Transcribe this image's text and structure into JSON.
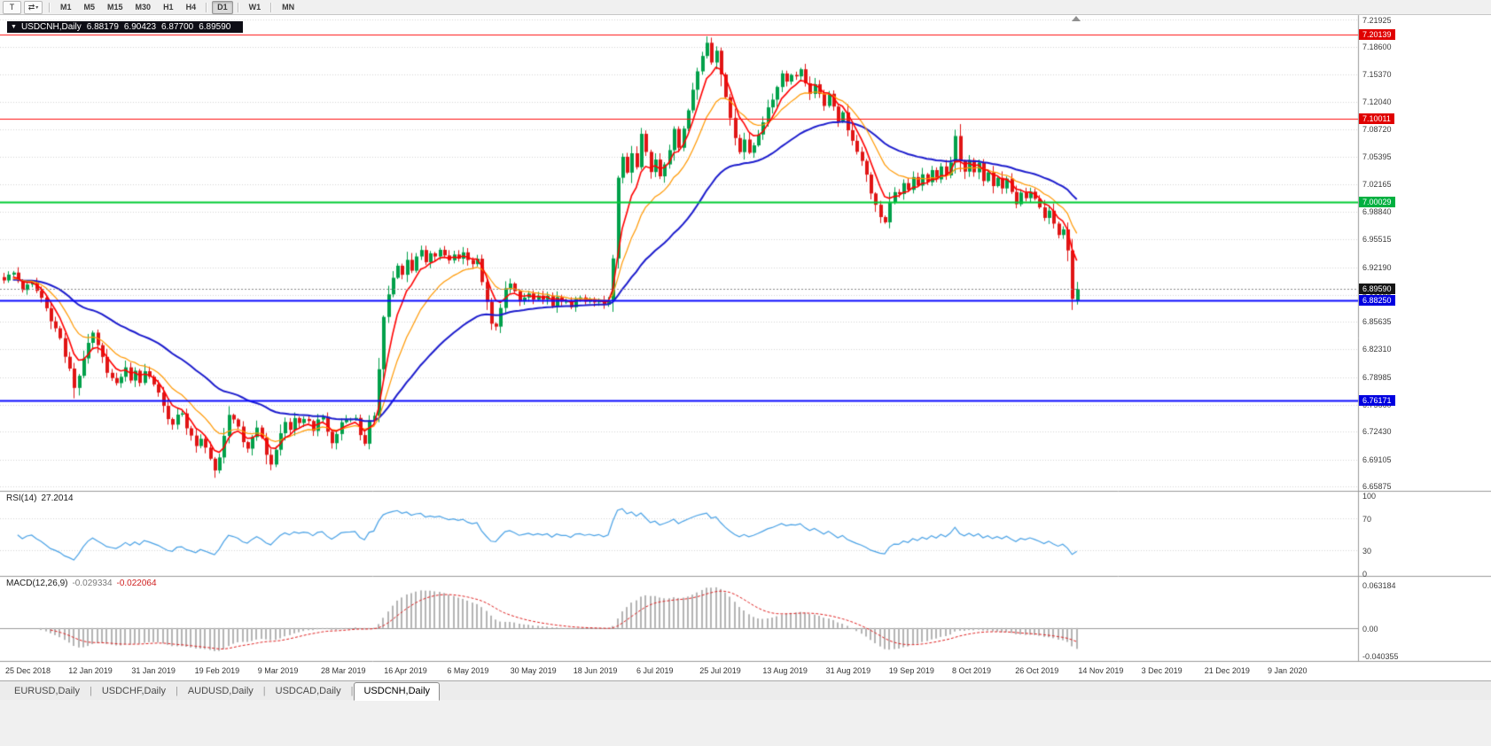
{
  "toolbar": {
    "tool_buttons": [
      {
        "name": "chart-tool-button",
        "glyph": "T"
      },
      {
        "name": "scroll-arrows-button",
        "glyph": "⇄",
        "caret": "▾"
      }
    ],
    "timeframe_groups": [
      [
        "M1",
        "M5",
        "M15",
        "M30",
        "H1",
        "H4"
      ],
      [
        "D1"
      ],
      [
        "W1"
      ],
      [
        "MN"
      ]
    ],
    "active_timeframe": "D1"
  },
  "chart_header": {
    "collapse_icon": "▼",
    "symbol": "USDCNH,Daily",
    "open": "6.88179",
    "high": "6.90423",
    "low": "6.87700",
    "close": "6.89590"
  },
  "price_axis": {
    "ticks": [
      "7.21925",
      "7.18600",
      "7.15370",
      "7.12040",
      "7.08720",
      "7.05395",
      "7.02165",
      "6.98840",
      "6.95515",
      "6.92190",
      "6.88865",
      "6.85635",
      "6.82310",
      "6.78985",
      "6.75660",
      "6.72430",
      "6.69105",
      "6.65875"
    ],
    "badges": [
      {
        "text": "7.20139",
        "price": 7.20139,
        "color": "#e00000"
      },
      {
        "text": "7.10011",
        "price": 7.10011,
        "color": "#e00000"
      },
      {
        "text": "7.00029",
        "price": 7.00029,
        "color": "#00b040"
      },
      {
        "text": "6.89590",
        "price": 6.8959,
        "color": "#151515"
      },
      {
        "text": "6.88250",
        "price": 6.8825,
        "color": "#0000e0"
      },
      {
        "text": "6.76171",
        "price": 6.76171,
        "color": "#0000e0"
      }
    ]
  },
  "hlines": [
    {
      "price": 7.20139,
      "color": "#ff1010",
      "width": 1.2
    },
    {
      "price": 7.10011,
      "color": "#ff1010",
      "width": 1.2
    },
    {
      "price": 7.00029,
      "color": "#00cc33",
      "width": 2
    },
    {
      "price": 6.8825,
      "color": "#0a0aff",
      "width": 2
    },
    {
      "price": 6.76171,
      "color": "#0a0aff",
      "width": 2
    }
  ],
  "last_price_line": {
    "price": 6.8959,
    "color": "#8a8a8a"
  },
  "rsi_panel": {
    "title": "RSI(14)",
    "value": "27.2014",
    "period": 14,
    "levels": [
      "100",
      "70",
      "30",
      "0"
    ],
    "level_values": [
      100,
      70,
      30,
      0
    ],
    "overbought": 70,
    "oversold": 30,
    "line_color": "#4aa2e6"
  },
  "macd_panel": {
    "title": "MACD(12,26,9)",
    "value_main": "-0.029334",
    "value_signal": "-0.022064",
    "fast": 12,
    "slow": 26,
    "signal": 9,
    "axis_labels": [
      "0.063184",
      "0.00",
      "-0.040355"
    ],
    "axis_values": [
      0.063184,
      0,
      -0.040355
    ],
    "hist_color": "#b4b4b4",
    "signal_color": "#e02020"
  },
  "tabs": {
    "items": [
      "EURUSD,Daily",
      "USDCHF,Daily",
      "AUDUSD,Daily",
      "USDCAD,Daily",
      "USDCNH,Daily"
    ],
    "active": "USDCNH,Daily"
  },
  "chart_data": {
    "type": "candlestick",
    "symbol": "USDCNH",
    "timeframe": "Daily",
    "bars": 230,
    "price_axis_top": 7.21925,
    "price_axis_bottom": 6.65875,
    "up_color": "#00a04a",
    "down_color": "#e01515",
    "x_tick_labels": [
      "25 Dec 2018",
      "12 Jan 2019",
      "31 Jan 2019",
      "19 Feb 2019",
      "9 Mar 2019",
      "28 Mar 2019",
      "16 Apr 2019",
      "6 May 2019",
      "30 May 2019",
      "18 Jun 2019",
      "6 Jul 2019",
      "25 Jul 2019",
      "13 Aug 2019",
      "31 Aug 2019",
      "19 Sep 2019",
      "8 Oct 2019",
      "26 Oct 2019",
      "14 Nov 2019",
      "3 Dec 2019",
      "21 Dec 2019",
      "9 Jan 2020"
    ],
    "last_ohlc": [
      6.88179,
      6.90423,
      6.877,
      6.8959
    ],
    "noise": 0.007,
    "ma_lines": [
      {
        "type": "ema",
        "period": 40,
        "color": "#1c1ccd",
        "width": 2
      },
      {
        "type": "ema",
        "period": 14,
        "color": "#ff9800",
        "width": 1.2
      },
      {
        "type": "ema",
        "period": 6,
        "color": "#ff0000",
        "width": 1.6
      }
    ],
    "close_path": [
      [
        0,
        6.908
      ],
      [
        2,
        6.915
      ],
      [
        4,
        6.896
      ],
      [
        6,
        6.902
      ],
      [
        8,
        6.885
      ],
      [
        10,
        6.86
      ],
      [
        12,
        6.836
      ],
      [
        13,
        6.815
      ],
      [
        14,
        6.798
      ],
      [
        15,
        6.778
      ],
      [
        16,
        6.792
      ],
      [
        17,
        6.814
      ],
      [
        18,
        6.828
      ],
      [
        19,
        6.842
      ],
      [
        20,
        6.826
      ],
      [
        21,
        6.812
      ],
      [
        22,
        6.798
      ],
      [
        23,
        6.788
      ],
      [
        24,
        6.78
      ],
      [
        25,
        6.792
      ],
      [
        26,
        6.8
      ],
      [
        27,
        6.788
      ],
      [
        28,
        6.795
      ],
      [
        29,
        6.785
      ],
      [
        30,
        6.798
      ],
      [
        31,
        6.79
      ],
      [
        32,
        6.782
      ],
      [
        33,
        6.772
      ],
      [
        34,
        6.755
      ],
      [
        35,
        6.742
      ],
      [
        36,
        6.732
      ],
      [
        37,
        6.742
      ],
      [
        38,
        6.748
      ],
      [
        39,
        6.73
      ],
      [
        40,
        6.718
      ],
      [
        41,
        6.705
      ],
      [
        42,
        6.715
      ],
      [
        43,
        6.708
      ],
      [
        44,
        6.692
      ],
      [
        45,
        6.676
      ],
      [
        46,
        6.692
      ],
      [
        47,
        6.722
      ],
      [
        48,
        6.745
      ],
      [
        49,
        6.736
      ],
      [
        50,
        6.728
      ],
      [
        51,
        6.712
      ],
      [
        52,
        6.705
      ],
      [
        53,
        6.718
      ],
      [
        54,
        6.732
      ],
      [
        55,
        6.715
      ],
      [
        56,
        6.698
      ],
      [
        57,
        6.686
      ],
      [
        58,
        6.702
      ],
      [
        59,
        6.722
      ],
      [
        60,
        6.736
      ],
      [
        61,
        6.728
      ],
      [
        62,
        6.738
      ],
      [
        63,
        6.732
      ],
      [
        64,
        6.742
      ],
      [
        65,
        6.736
      ],
      [
        66,
        6.728
      ],
      [
        67,
        6.736
      ],
      [
        68,
        6.742
      ],
      [
        69,
        6.725
      ],
      [
        70,
        6.71
      ],
      [
        71,
        6.722
      ],
      [
        72,
        6.736
      ],
      [
        73,
        6.742
      ],
      [
        74,
        6.738
      ],
      [
        75,
        6.742
      ],
      [
        76,
        6.722
      ],
      [
        77,
        6.708
      ],
      [
        78,
        6.735
      ],
      [
        79,
        6.745
      ],
      [
        80,
        6.802
      ],
      [
        81,
        6.862
      ],
      [
        82,
        6.89
      ],
      [
        83,
        6.908
      ],
      [
        84,
        6.922
      ],
      [
        85,
        6.912
      ],
      [
        86,
        6.93
      ],
      [
        87,
        6.92
      ],
      [
        88,
        6.935
      ],
      [
        89,
        6.942
      ],
      [
        90,
        6.93
      ],
      [
        91,
        6.94
      ],
      [
        92,
        6.932
      ],
      [
        93,
        6.942
      ],
      [
        94,
        6.935
      ],
      [
        95,
        6.928
      ],
      [
        96,
        6.938
      ],
      [
        97,
        6.93
      ],
      [
        98,
        6.94
      ],
      [
        99,
        6.932
      ],
      [
        100,
        6.925
      ],
      [
        101,
        6.935
      ],
      [
        102,
        6.905
      ],
      [
        103,
        6.878
      ],
      [
        104,
        6.856
      ],
      [
        105,
        6.848
      ],
      [
        106,
        6.872
      ],
      [
        107,
        6.895
      ],
      [
        108,
        6.905
      ],
      [
        109,
        6.892
      ],
      [
        110,
        6.878
      ],
      [
        111,
        6.885
      ],
      [
        112,
        6.89
      ],
      [
        113,
        6.882
      ],
      [
        114,
        6.887
      ],
      [
        115,
        6.88
      ],
      [
        116,
        6.885
      ],
      [
        117,
        6.878
      ],
      [
        118,
        6.884
      ],
      [
        119,
        6.878
      ],
      [
        120,
        6.882
      ],
      [
        121,
        6.876
      ],
      [
        122,
        6.881
      ],
      [
        123,
        6.885
      ],
      [
        124,
        6.879
      ],
      [
        125,
        6.883
      ],
      [
        126,
        6.878
      ],
      [
        127,
        6.882
      ],
      [
        128,
        6.878
      ],
      [
        129,
        6.883
      ],
      [
        130,
        6.935
      ],
      [
        131,
        7.03
      ],
      [
        132,
        7.052
      ],
      [
        133,
        7.036
      ],
      [
        134,
        7.06
      ],
      [
        135,
        7.045
      ],
      [
        136,
        7.085
      ],
      [
        137,
        7.06
      ],
      [
        138,
        7.036
      ],
      [
        139,
        7.052
      ],
      [
        140,
        7.032
      ],
      [
        141,
        7.048
      ],
      [
        142,
        7.065
      ],
      [
        143,
        7.085
      ],
      [
        144,
        7.068
      ],
      [
        145,
        7.09
      ],
      [
        146,
        7.11
      ],
      [
        147,
        7.135
      ],
      [
        148,
        7.158
      ],
      [
        149,
        7.178
      ],
      [
        150,
        7.192
      ],
      [
        151,
        7.165
      ],
      [
        152,
        7.182
      ],
      [
        153,
        7.155
      ],
      [
        154,
        7.128
      ],
      [
        155,
        7.098
      ],
      [
        156,
        7.078
      ],
      [
        157,
        7.062
      ],
      [
        158,
        7.075
      ],
      [
        159,
        7.062
      ],
      [
        160,
        7.068
      ],
      [
        161,
        7.082
      ],
      [
        162,
        7.098
      ],
      [
        163,
        7.112
      ],
      [
        164,
        7.125
      ],
      [
        165,
        7.138
      ],
      [
        166,
        7.152
      ],
      [
        167,
        7.142
      ],
      [
        168,
        7.155
      ],
      [
        169,
        7.148
      ],
      [
        170,
        7.158
      ],
      [
        171,
        7.145
      ],
      [
        172,
        7.132
      ],
      [
        173,
        7.142
      ],
      [
        174,
        7.128
      ],
      [
        175,
        7.118
      ],
      [
        176,
        7.128
      ],
      [
        177,
        7.112
      ],
      [
        178,
        7.098
      ],
      [
        179,
        7.108
      ],
      [
        180,
        7.088
      ],
      [
        181,
        7.075
      ],
      [
        182,
        7.062
      ],
      [
        183,
        7.048
      ],
      [
        184,
        7.032
      ],
      [
        185,
        7.012
      ],
      [
        186,
        6.995
      ],
      [
        187,
        6.982
      ],
      [
        188,
        6.975
      ],
      [
        189,
        6.998
      ],
      [
        190,
        7.015
      ],
      [
        191,
        7.008
      ],
      [
        192,
        7.022
      ],
      [
        193,
        7.012
      ],
      [
        194,
        7.028
      ],
      [
        195,
        7.018
      ],
      [
        196,
        7.032
      ],
      [
        197,
        7.022
      ],
      [
        198,
        7.038
      ],
      [
        199,
        7.028
      ],
      [
        200,
        7.042
      ],
      [
        201,
        7.032
      ],
      [
        202,
        7.045
      ],
      [
        203,
        7.078
      ],
      [
        204,
        7.052
      ],
      [
        205,
        7.038
      ],
      [
        206,
        7.048
      ],
      [
        207,
        7.035
      ],
      [
        208,
        7.045
      ],
      [
        209,
        7.028
      ],
      [
        210,
        7.038
      ],
      [
        211,
        7.022
      ],
      [
        212,
        7.032
      ],
      [
        213,
        7.018
      ],
      [
        214,
        7.028
      ],
      [
        215,
        7.012
      ],
      [
        216,
        6.998
      ],
      [
        217,
        7.012
      ],
      [
        218,
        7.002
      ],
      [
        219,
        7.015
      ],
      [
        220,
        7.002
      ],
      [
        221,
        6.992
      ],
      [
        222,
        6.978
      ],
      [
        223,
        6.988
      ],
      [
        224,
        6.972
      ],
      [
        225,
        6.96
      ],
      [
        226,
        6.968
      ],
      [
        227,
        6.942
      ],
      [
        228,
        6.884
      ],
      [
        229,
        6.896
      ]
    ]
  }
}
